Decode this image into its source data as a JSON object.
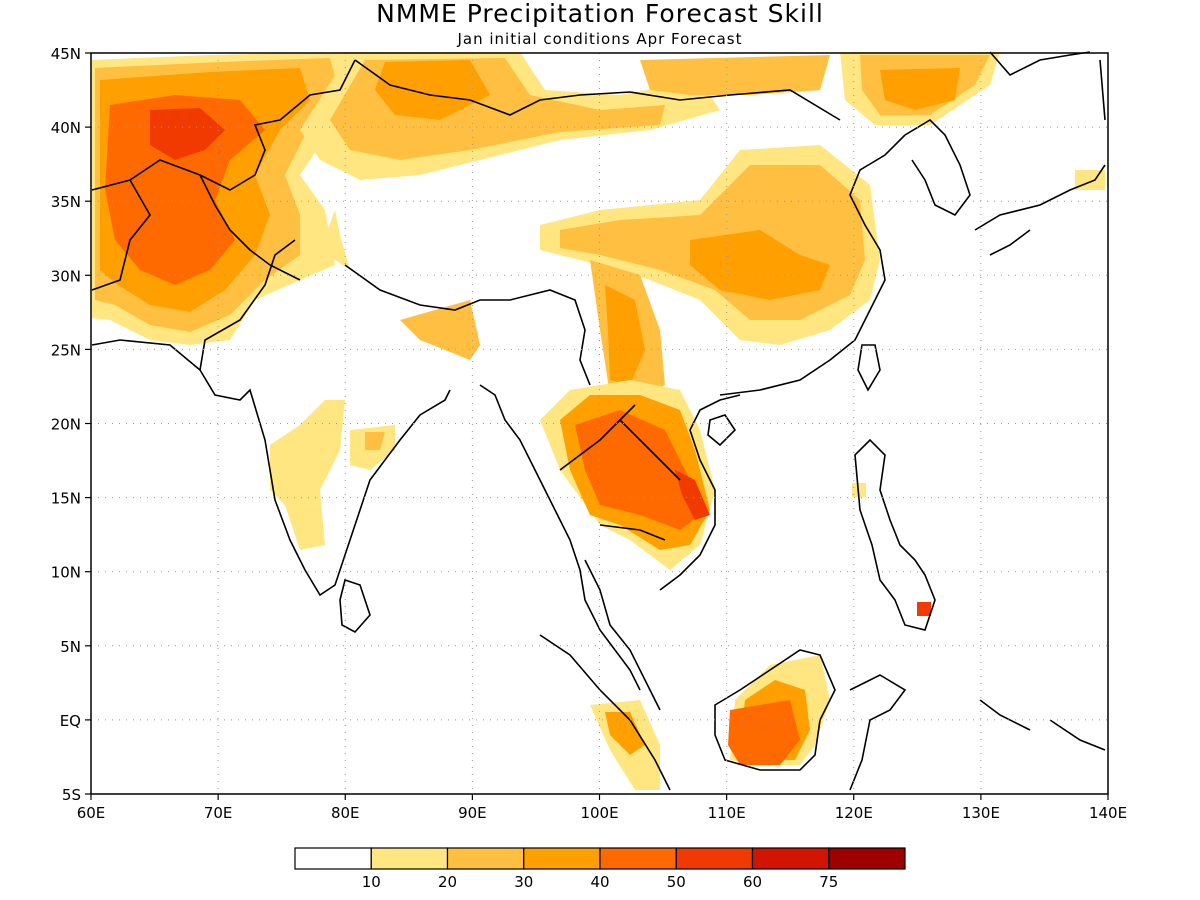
{
  "title": "NMME Precipitation Forecast Skill",
  "subtitle": "Jan initial conditions  Apr Forecast",
  "map": {
    "lon_range": [
      60,
      140
    ],
    "lat_range": [
      -5,
      45
    ],
    "lon_ticks": [
      {
        "value": 60,
        "label": "60E"
      },
      {
        "value": 70,
        "label": "70E"
      },
      {
        "value": 80,
        "label": "80E"
      },
      {
        "value": 90,
        "label": "90E"
      },
      {
        "value": 100,
        "label": "100E"
      },
      {
        "value": 110,
        "label": "110E"
      },
      {
        "value": 120,
        "label": "120E"
      },
      {
        "value": 130,
        "label": "130E"
      },
      {
        "value": 140,
        "label": "140E"
      }
    ],
    "lat_ticks": [
      {
        "value": 45,
        "label": "45N"
      },
      {
        "value": 40,
        "label": "40N"
      },
      {
        "value": 35,
        "label": "35N"
      },
      {
        "value": 30,
        "label": "30N"
      },
      {
        "value": 25,
        "label": "25N"
      },
      {
        "value": 20,
        "label": "20N"
      },
      {
        "value": 15,
        "label": "15N"
      },
      {
        "value": 10,
        "label": "10N"
      },
      {
        "value": 5,
        "label": "5N"
      },
      {
        "value": 0,
        "label": "EQ"
      },
      {
        "value": -5,
        "label": "5S"
      }
    ],
    "grid": "dotted"
  },
  "colorbar": {
    "colors": [
      "#ffffff",
      "#ffe680",
      "#ffbf40",
      "#ff9f00",
      "#ff6a00",
      "#f03a00",
      "#d11500",
      "#9e0000"
    ],
    "tick_labels": [
      "10",
      "20",
      "30",
      "40",
      "50",
      "60",
      "75"
    ]
  }
}
